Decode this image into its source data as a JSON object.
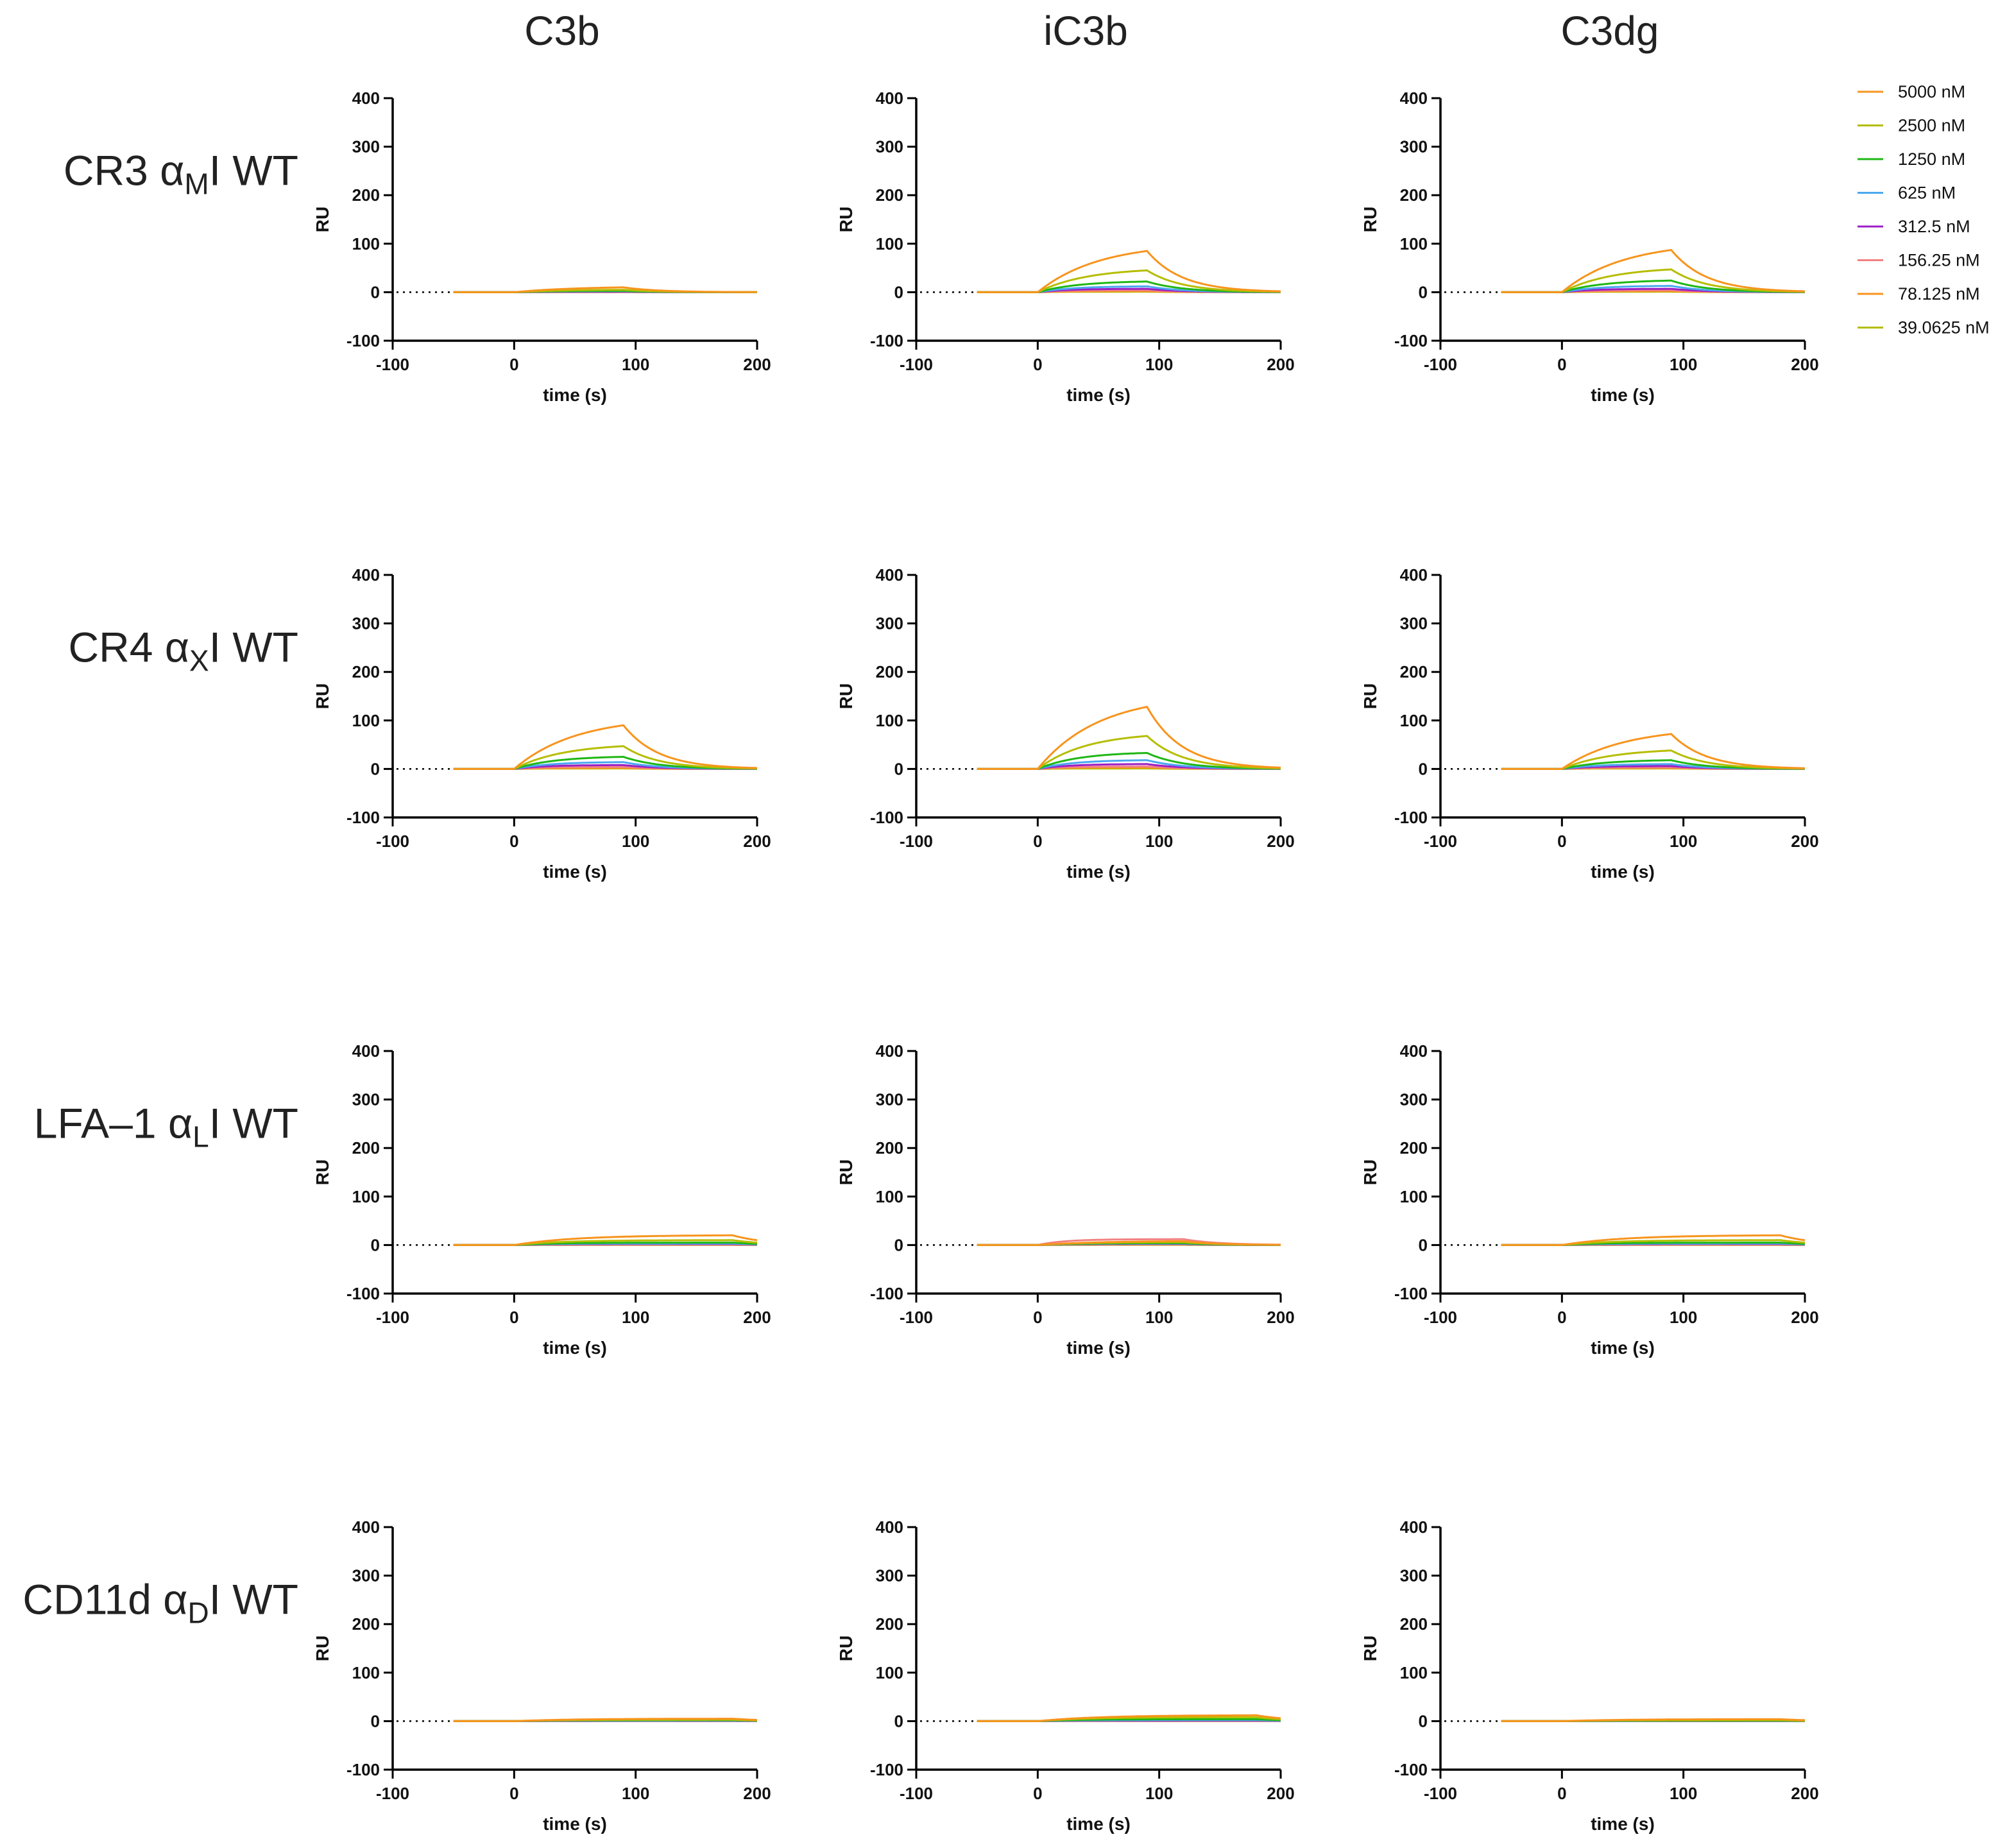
{
  "figure": {
    "columns": [
      "C3b",
      "iC3b",
      "C3dg"
    ],
    "rows": [
      {
        "main": "CR3 α",
        "sub": "M",
        "suffix": "I WT"
      },
      {
        "main": "CR4 α",
        "sub": "X",
        "suffix": "I WT"
      },
      {
        "main": "LFA–1 α",
        "sub": "L",
        "suffix": "I WT"
      },
      {
        "main": "CD11d α",
        "sub": "D",
        "suffix": "I WT"
      }
    ]
  },
  "legend": [
    {
      "label": "5000 nM",
      "color": "#f7941d"
    },
    {
      "label": "2500 nM",
      "color": "#b5bd00"
    },
    {
      "label": "1250 nM",
      "color": "#1fb714"
    },
    {
      "label": "625 nM",
      "color": "#4aa8ef"
    },
    {
      "label": "312.5 nM",
      "color": "#9b1fc4"
    },
    {
      "label": "156.25 nM",
      "color": "#f28080"
    },
    {
      "label": "78.125 nM",
      "color": "#f7941d"
    },
    {
      "label": "39.0625 nM",
      "color": "#b5bd00"
    }
  ],
  "chart_data": [
    {
      "type": "line",
      "row": 0,
      "col": 0,
      "xlabel": "time (s)",
      "ylabel": "RU",
      "xlim": [
        -100,
        200
      ],
      "ylim": [
        -100,
        400
      ],
      "xticks": [
        "-100",
        "0",
        "100",
        "200"
      ],
      "yticks": [
        "-100",
        "0",
        "100",
        "200",
        "300",
        "400"
      ],
      "assoc_start": 0,
      "assoc_end": 90,
      "peaks": [
        10,
        5,
        3,
        2,
        1,
        0.5,
        0.3,
        0.2
      ]
    },
    {
      "type": "line",
      "row": 0,
      "col": 1,
      "xlabel": "time (s)",
      "ylabel": "RU",
      "xlim": [
        -100,
        200
      ],
      "ylim": [
        -100,
        400
      ],
      "xticks": [
        "-100",
        "0",
        "100",
        "200"
      ],
      "yticks": [
        "-100",
        "0",
        "100",
        "200",
        "300",
        "400"
      ],
      "assoc_start": 0,
      "assoc_end": 90,
      "peaks": [
        85,
        45,
        22,
        12,
        7,
        4,
        2,
        1
      ]
    },
    {
      "type": "line",
      "row": 0,
      "col": 2,
      "xlabel": "time (s)",
      "ylabel": "RU",
      "xlim": [
        -100,
        200
      ],
      "ylim": [
        -100,
        400
      ],
      "xticks": [
        "-100",
        "0",
        "100",
        "200"
      ],
      "yticks": [
        "-100",
        "0",
        "100",
        "200",
        "300",
        "400"
      ],
      "assoc_start": 0,
      "assoc_end": 90,
      "peaks": [
        87,
        47,
        24,
        13,
        7,
        4,
        2,
        1
      ]
    },
    {
      "type": "line",
      "row": 1,
      "col": 0,
      "xlabel": "time (s)",
      "ylabel": "RU",
      "xlim": [
        -100,
        200
      ],
      "ylim": [
        -100,
        400
      ],
      "xticks": [
        "-100",
        "0",
        "100",
        "200"
      ],
      "yticks": [
        "-100",
        "0",
        "100",
        "200",
        "300",
        "400"
      ],
      "assoc_start": 0,
      "assoc_end": 90,
      "peaks": [
        90,
        47,
        25,
        14,
        8,
        4,
        2,
        1
      ]
    },
    {
      "type": "line",
      "row": 1,
      "col": 1,
      "xlabel": "time (s)",
      "ylabel": "RU",
      "xlim": [
        -100,
        200
      ],
      "ylim": [
        -100,
        400
      ],
      "xticks": [
        "-100",
        "0",
        "100",
        "200"
      ],
      "yticks": [
        "-100",
        "0",
        "100",
        "200",
        "300",
        "400"
      ],
      "assoc_start": 0,
      "assoc_end": 90,
      "peaks": [
        128,
        68,
        33,
        18,
        10,
        5,
        3,
        1
      ]
    },
    {
      "type": "line",
      "row": 1,
      "col": 2,
      "xlabel": "time (s)",
      "ylabel": "RU",
      "xlim": [
        -100,
        200
      ],
      "ylim": [
        -100,
        400
      ],
      "xticks": [
        "-100",
        "0",
        "100",
        "200"
      ],
      "yticks": [
        "-100",
        "0",
        "100",
        "200",
        "300",
        "400"
      ],
      "assoc_start": 0,
      "assoc_end": 90,
      "peaks": [
        72,
        38,
        18,
        10,
        6,
        3,
        2,
        1
      ]
    },
    {
      "type": "line",
      "row": 2,
      "col": 0,
      "xlabel": "time (s)",
      "ylabel": "RU",
      "xlim": [
        -100,
        200
      ],
      "ylim": [
        -100,
        400
      ],
      "xticks": [
        "-100",
        "0",
        "100",
        "200"
      ],
      "yticks": [
        "-100",
        "0",
        "100",
        "200",
        "300",
        "400"
      ],
      "assoc_start": 0,
      "assoc_end": 180,
      "peaks": [
        20,
        10,
        5,
        3,
        2,
        1,
        0.5,
        0.3
      ]
    },
    {
      "type": "line",
      "row": 2,
      "col": 1,
      "xlabel": "time (s)",
      "ylabel": "RU",
      "xlim": [
        -100,
        200
      ],
      "ylim": [
        -100,
        400
      ],
      "xticks": [
        "-100",
        "0",
        "100",
        "200"
      ],
      "yticks": [
        "-100",
        "0",
        "100",
        "200",
        "300",
        "400"
      ],
      "assoc_start": 0,
      "assoc_end": 120,
      "peaks": [
        8,
        6,
        4,
        3,
        2,
        12,
        1,
        0.5
      ]
    },
    {
      "type": "line",
      "row": 2,
      "col": 2,
      "xlabel": "time (s)",
      "ylabel": "RU",
      "xlim": [
        -100,
        200
      ],
      "ylim": [
        -100,
        400
      ],
      "xticks": [
        "-100",
        "0",
        "100",
        "200"
      ],
      "yticks": [
        "-100",
        "0",
        "100",
        "200",
        "300",
        "400"
      ],
      "assoc_start": 0,
      "assoc_end": 180,
      "peaks": [
        20,
        10,
        5,
        3,
        2,
        1,
        0.5,
        0.3
      ]
    },
    {
      "type": "line",
      "row": 3,
      "col": 0,
      "xlabel": "time (s)",
      "ylabel": "RU",
      "xlim": [
        -100,
        200
      ],
      "ylim": [
        -100,
        400
      ],
      "xticks": [
        "-100",
        "0",
        "100",
        "200"
      ],
      "yticks": [
        "-100",
        "0",
        "100",
        "200",
        "300",
        "400"
      ],
      "assoc_start": 0,
      "assoc_end": 180,
      "peaks": [
        5,
        3,
        2,
        1,
        0.5,
        0.3,
        0.2,
        0.1
      ]
    },
    {
      "type": "line",
      "row": 3,
      "col": 1,
      "xlabel": "time (s)",
      "ylabel": "RU",
      "xlim": [
        -100,
        200
      ],
      "ylim": [
        -100,
        400
      ],
      "xticks": [
        "-100",
        "0",
        "100",
        "200"
      ],
      "yticks": [
        "-100",
        "0",
        "100",
        "200",
        "300",
        "400"
      ],
      "assoc_start": 0,
      "assoc_end": 180,
      "peaks": [
        12,
        8,
        4,
        2,
        1,
        0.5,
        0.3,
        0.2
      ]
    },
    {
      "type": "line",
      "row": 3,
      "col": 2,
      "xlabel": "time (s)",
      "ylabel": "RU",
      "xlim": [
        -100,
        200
      ],
      "ylim": [
        -100,
        400
      ],
      "xticks": [
        "-100",
        "0",
        "100",
        "200"
      ],
      "yticks": [
        "-100",
        "0",
        "100",
        "200",
        "300",
        "400"
      ],
      "assoc_start": 0,
      "assoc_end": 180,
      "peaks": [
        4,
        2,
        1,
        0.5,
        0.3,
        0.2,
        0.1,
        0.1
      ]
    }
  ]
}
